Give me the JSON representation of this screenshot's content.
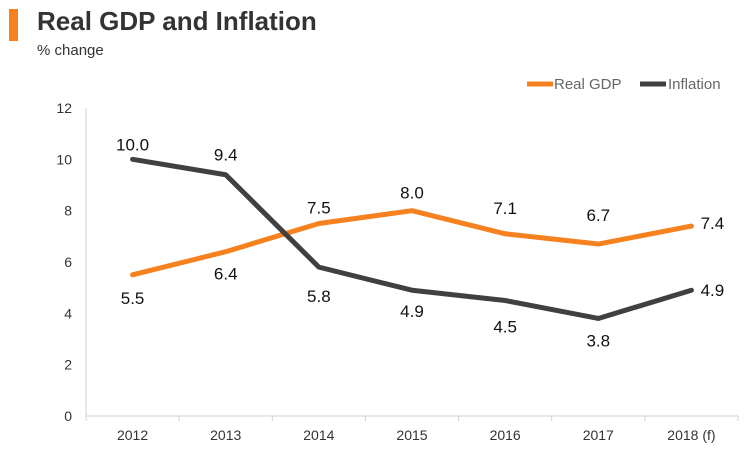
{
  "header": {
    "title": "Real GDP and Inflation",
    "subtitle": "% change",
    "accent_color": "#F5821F"
  },
  "chart_data": {
    "type": "line",
    "title": "Real GDP and Inflation",
    "ylabel": "% change",
    "xlabel": "",
    "categories": [
      "2012",
      "2013",
      "2014",
      "2015",
      "2016",
      "2017",
      "2018 (f)"
    ],
    "ylim": [
      0,
      12
    ],
    "yticks": [
      0,
      2,
      4,
      6,
      8,
      10,
      12
    ],
    "grid": false,
    "legend_position": "top-right",
    "series": [
      {
        "name": "Real GDP",
        "color": "#F5821F",
        "values": [
          5.5,
          6.4,
          7.5,
          8.0,
          7.1,
          6.7,
          7.4
        ],
        "labels": [
          "5.5",
          "6.4",
          "7.5",
          "8.0",
          "7.1",
          "6.7",
          "7.4"
        ]
      },
      {
        "name": "Inflation",
        "color": "#404040",
        "values": [
          10.0,
          9.4,
          5.8,
          4.9,
          4.5,
          3.8,
          4.9
        ],
        "labels": [
          "10.0",
          "9.4",
          "5.8",
          "4.9",
          "4.5",
          "3.8",
          "4.9"
        ]
      }
    ]
  }
}
